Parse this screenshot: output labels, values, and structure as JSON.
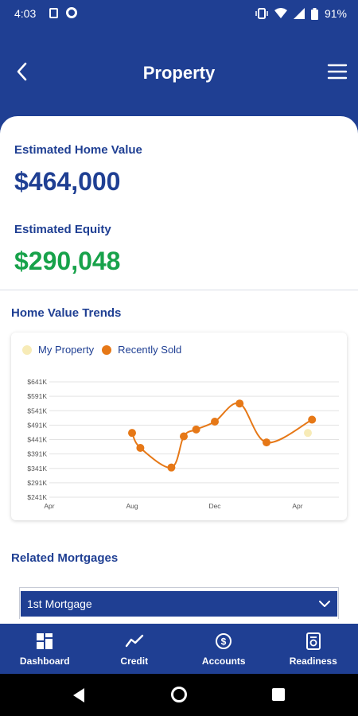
{
  "status_bar": {
    "time": "4:03",
    "battery": "91%"
  },
  "header": {
    "title": "Property"
  },
  "property": {
    "home_value_label": "Estimated Home Value",
    "home_value": "$464,000",
    "equity_label": "Estimated Equity",
    "equity_value": "$290,048",
    "equity_color": "#17a24a",
    "brand_color": "#1f3f93"
  },
  "trends": {
    "title": "Home Value Trends",
    "legend": [
      {
        "name": "My Property",
        "color": "#f7ebb7"
      },
      {
        "name": "Recently Sold",
        "color": "#e67817"
      }
    ]
  },
  "chart_data": {
    "type": "line",
    "title": "",
    "xlabel": "",
    "ylabel": "",
    "y_ticks": [
      "$241K",
      "$291K",
      "$341K",
      "$391K",
      "$441K",
      "$491K",
      "$541K",
      "$591K",
      "$641K"
    ],
    "ylim": [
      241,
      641
    ],
    "x_ticks": [
      "Apr",
      "Aug",
      "Dec",
      "Apr"
    ],
    "xlim": [
      0,
      14
    ],
    "grid": true,
    "legend_position": "top-left",
    "series": [
      {
        "name": "Recently Sold",
        "color": "#e67817",
        "type": "line+markers",
        "points": [
          {
            "x": 4.0,
            "y": 464
          },
          {
            "x": 4.4,
            "y": 412
          },
          {
            "x": 5.9,
            "y": 344
          },
          {
            "x": 6.5,
            "y": 452
          },
          {
            "x": 7.1,
            "y": 476
          },
          {
            "x": 8.0,
            "y": 503
          },
          {
            "x": 9.2,
            "y": 566
          },
          {
            "x": 10.5,
            "y": 431
          },
          {
            "x": 12.7,
            "y": 510
          }
        ]
      },
      {
        "name": "My Property",
        "color": "#f7ebb7",
        "type": "markers",
        "points": [
          {
            "x": 12.5,
            "y": 464
          }
        ]
      }
    ]
  },
  "mortgages": {
    "title": "Related Mortgages",
    "selected": "1st Mortgage"
  },
  "bottom_nav": {
    "items": [
      {
        "label": "Dashboard",
        "icon": "dashboard-icon"
      },
      {
        "label": "Credit",
        "icon": "credit-trend-icon"
      },
      {
        "label": "Accounts",
        "icon": "accounts-dollar-icon"
      },
      {
        "label": "Readiness",
        "icon": "readiness-document-icon"
      }
    ]
  }
}
